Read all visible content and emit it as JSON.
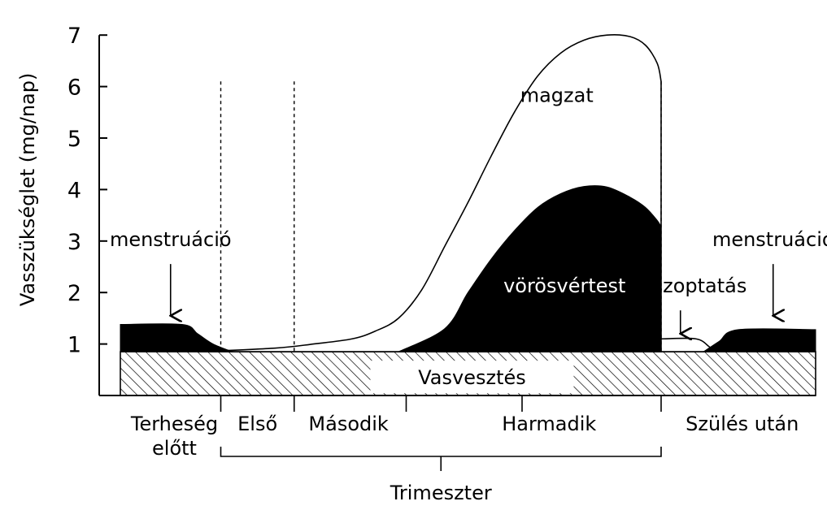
{
  "chart_data": {
    "type": "area",
    "ylabel": "Vasszükséglet (mg/nap)",
    "xlabel": "Trimeszter",
    "ylim": [
      0,
      7
    ],
    "y_ticks": [
      1,
      2,
      3,
      4,
      5,
      6,
      7
    ],
    "periods": [
      "Terheség\nelőtt",
      "Első",
      "Második",
      "Harmadik",
      "Szülés után"
    ],
    "periods_lines": [
      [
        "Terheség",
        "előtt"
      ],
      [
        "Első"
      ],
      [
        "Második"
      ],
      [
        "Harmadik"
      ],
      [
        "Szülés után"
      ]
    ],
    "trimester_bracket_label": "Trimeszter",
    "baseline": {
      "name": "Vasvesztés",
      "value": 0.85
    },
    "series": [
      {
        "name": "vörösvértest",
        "points": [
          [
            3.6,
            0.85
          ],
          [
            4.2,
            1.3
          ],
          [
            4.5,
            2.0
          ],
          [
            4.8,
            2.65
          ],
          [
            5.1,
            3.2
          ],
          [
            5.4,
            3.65
          ],
          [
            5.7,
            3.92
          ],
          [
            6.0,
            4.06
          ],
          [
            6.3,
            4.05
          ],
          [
            6.6,
            3.85
          ],
          [
            6.8,
            3.65
          ],
          [
            6.95,
            3.4
          ],
          [
            7.0,
            3.28
          ]
        ]
      },
      {
        "name": "magzat",
        "points": [
          [
            1.0,
            0.85
          ],
          [
            2.0,
            0.92
          ],
          [
            2.5,
            1.0
          ],
          [
            3.0,
            1.1
          ],
          [
            3.3,
            1.25
          ],
          [
            3.6,
            1.5
          ],
          [
            3.9,
            2.05
          ],
          [
            4.2,
            2.9
          ],
          [
            4.5,
            3.75
          ],
          [
            4.8,
            4.65
          ],
          [
            5.1,
            5.5
          ],
          [
            5.4,
            6.2
          ],
          [
            5.7,
            6.65
          ],
          [
            6.0,
            6.9
          ],
          [
            6.3,
            7.0
          ],
          [
            6.6,
            6.97
          ],
          [
            6.8,
            6.8
          ],
          [
            6.95,
            6.45
          ],
          [
            7.0,
            6.1
          ]
        ]
      },
      {
        "name": "menstruáció",
        "points": [
          [
            0.0,
            1.38
          ],
          [
            0.8,
            1.38
          ],
          [
            1.0,
            1.2
          ],
          [
            1.2,
            1.0
          ],
          [
            1.45,
            0.85
          ]
        ]
      },
      {
        "name": "menstruáció",
        "points": [
          [
            7.55,
            0.85
          ],
          [
            7.75,
            1.05
          ],
          [
            8.0,
            1.28
          ],
          [
            9.0,
            1.28
          ]
        ]
      },
      {
        "name": "szoptatás",
        "points": [
          [
            7.0,
            1.1
          ],
          [
            7.45,
            1.1
          ],
          [
            7.62,
            0.95
          ],
          [
            7.7,
            0.85
          ]
        ]
      }
    ],
    "period_boundaries": [
      1.3,
      2.25,
      3.7,
      5.2,
      7.0
    ],
    "annotations": [
      {
        "text": "menstruáció",
        "x": 0.65,
        "y": 2.9,
        "arrow_to": [
          0.65,
          1.55
        ]
      },
      {
        "text": "magzat",
        "x": 5.65,
        "y": 5.7
      },
      {
        "text": "vörösvértest",
        "x": 5.75,
        "y": 2.0
      },
      {
        "text": "szoptatás",
        "x": 7.5,
        "y": 2.0,
        "arrow_to": [
          7.25,
          1.2
        ]
      },
      {
        "text": "menstruáció",
        "x": 8.45,
        "y": 2.9,
        "arrow_to": [
          8.45,
          1.55
        ]
      }
    ],
    "grid": false
  }
}
